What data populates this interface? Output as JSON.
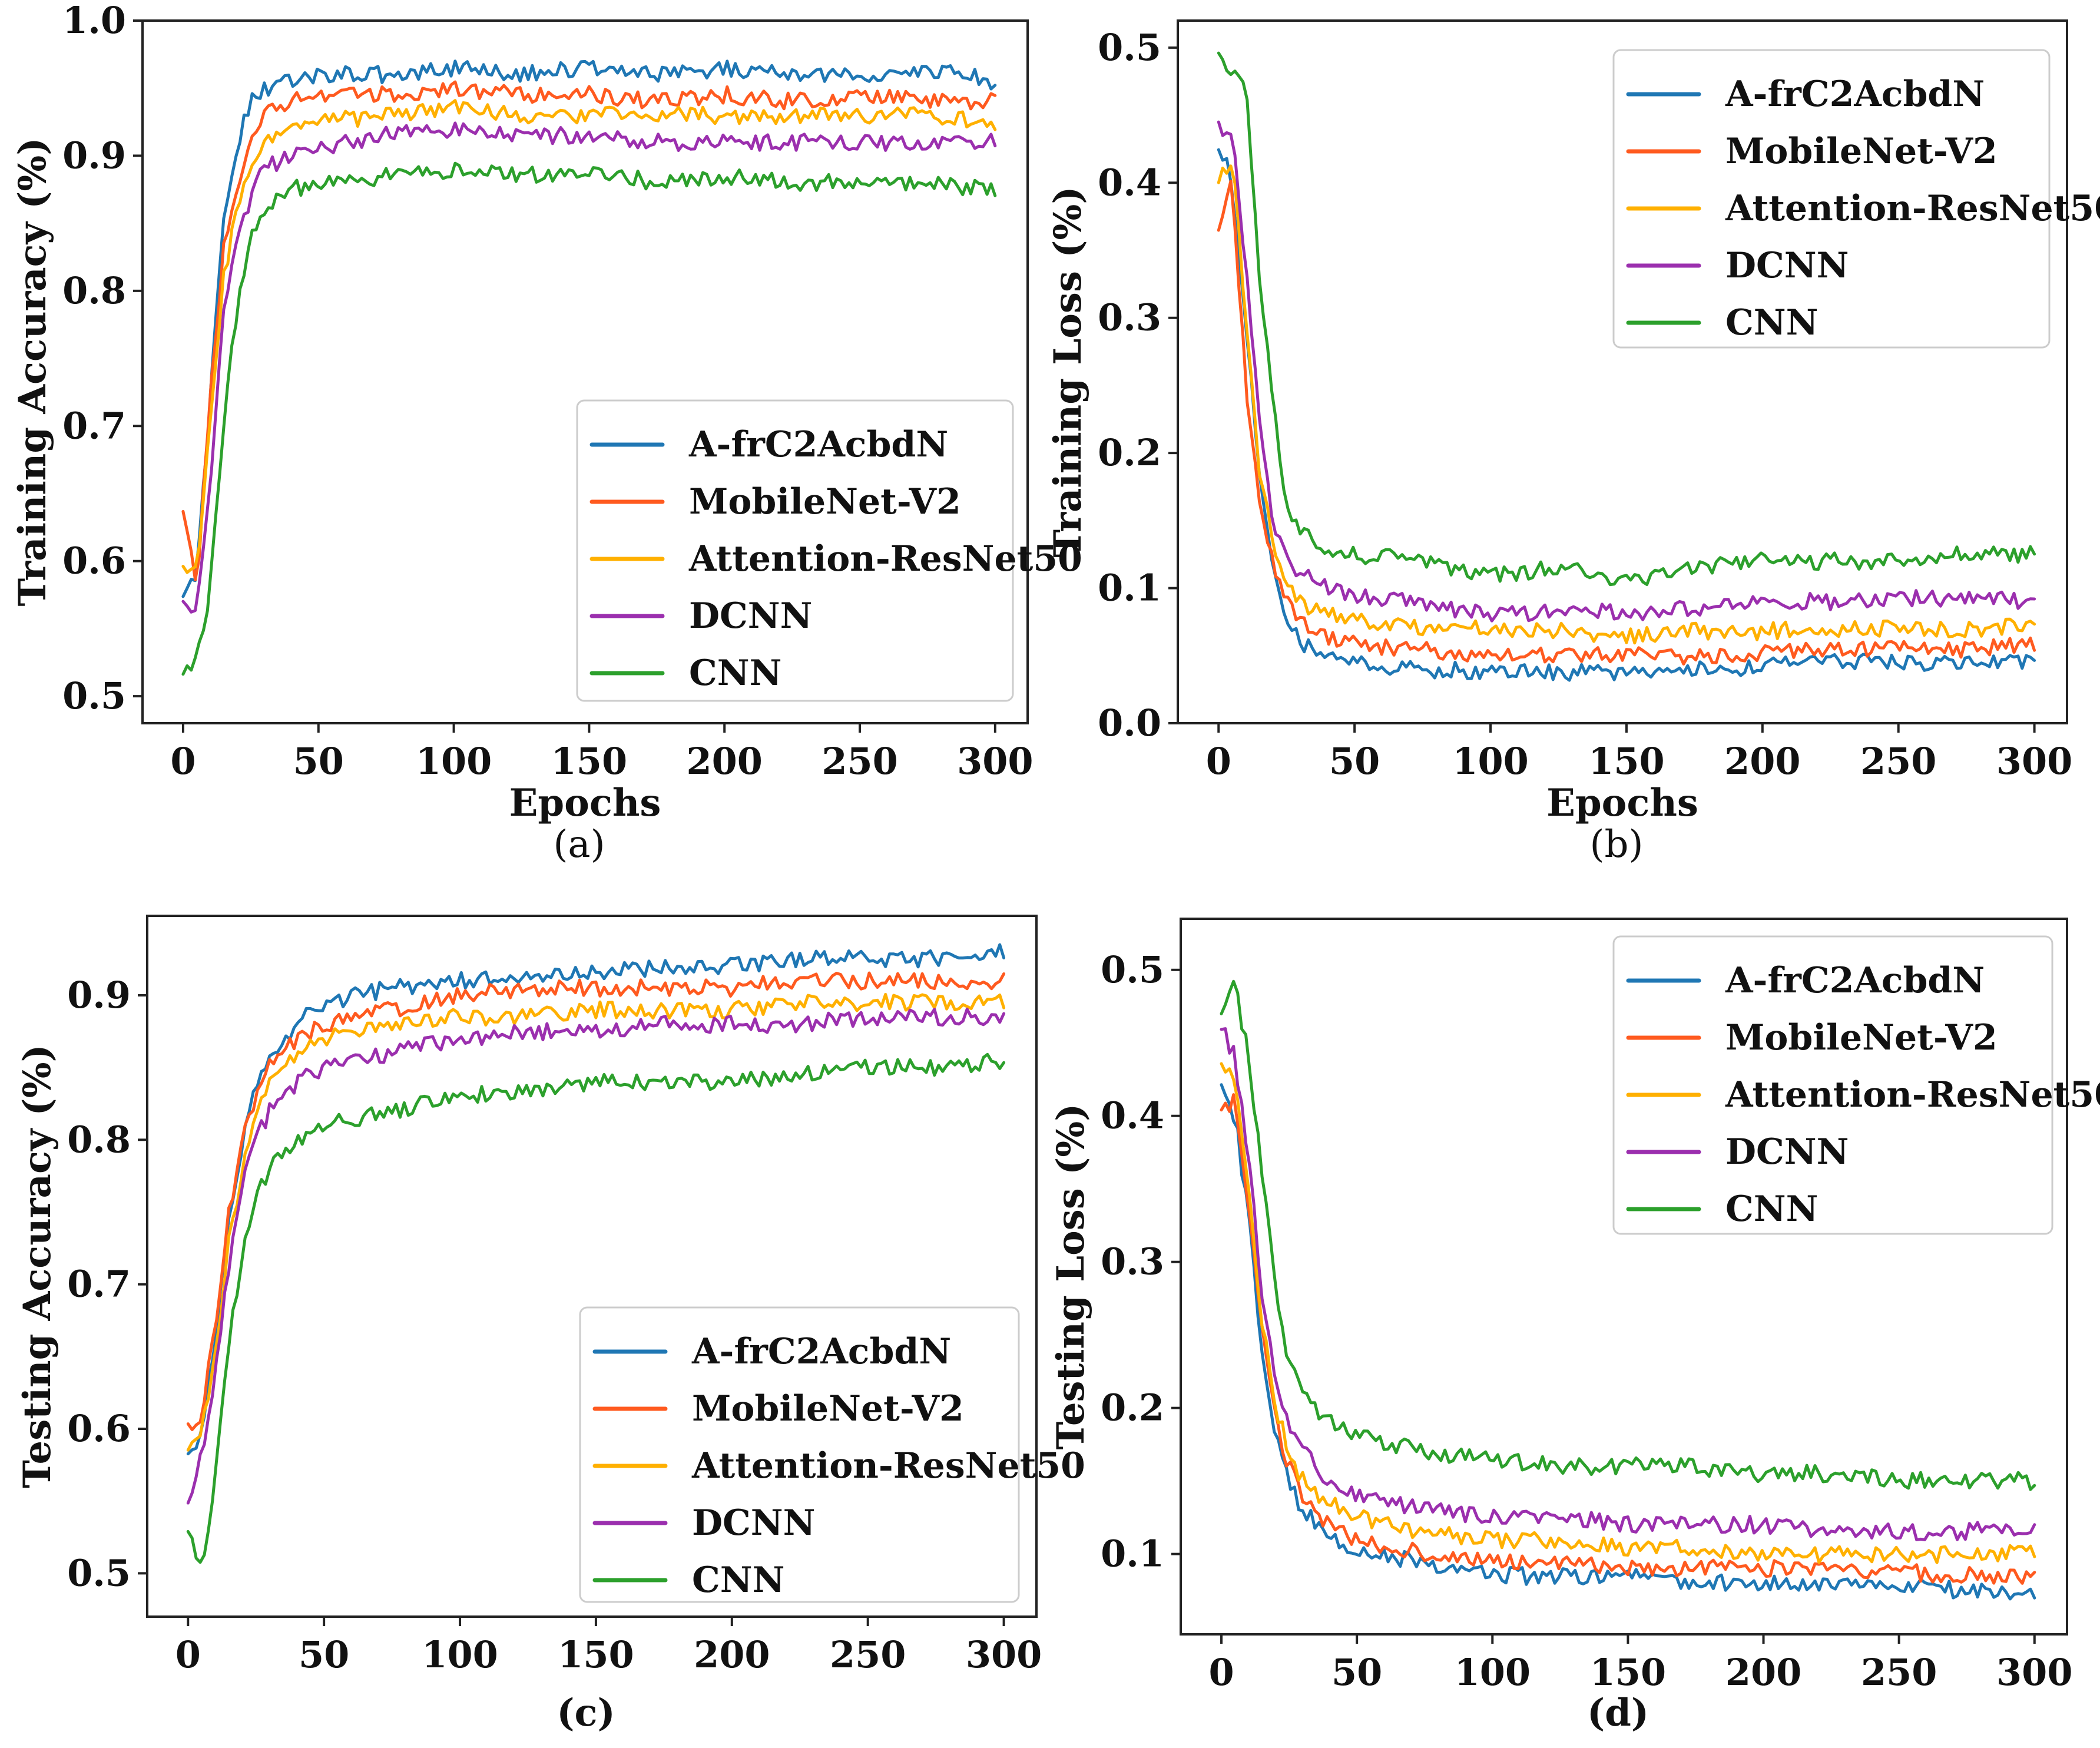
{
  "colors": {
    "A-frC2AcbdN": "#1f77b4",
    "MobileNet-V2": "#ff5a1f",
    "Attention-ResNet50": "#ffb000",
    "DCNN": "#9b2fae",
    "CNN": "#2ca02c"
  },
  "chart_data": [
    {
      "id": "a",
      "type": "line",
      "caption": "(a)",
      "caption_bold": false,
      "title": "",
      "xlabel": "Epochs",
      "ylabel": "Training Accuracy (%)",
      "xlim": [
        -15,
        312
      ],
      "ylim": [
        0.48,
        1.0
      ],
      "xticks": [
        0,
        50,
        100,
        150,
        200,
        250,
        300
      ],
      "xtick_labels": [
        "0",
        "50",
        "100",
        "150",
        "200",
        "250",
        "300"
      ],
      "yticks": [
        0.5,
        0.6,
        0.7,
        0.8,
        0.9,
        1.0
      ],
      "ytick_labels": [
        "0.5",
        "0.6",
        "0.7",
        "0.8",
        "0.9",
        "1.0"
      ],
      "legend_position": "lower-right",
      "grid": false,
      "x": [
        0,
        5,
        10,
        15,
        20,
        25,
        30,
        40,
        50,
        75,
        100,
        125,
        150,
        175,
        200,
        225,
        250,
        275,
        300
      ],
      "series": [
        {
          "name": "A-frC2AcbdN",
          "values": [
            0.58,
            0.59,
            0.72,
            0.85,
            0.91,
            0.94,
            0.95,
            0.955,
            0.96,
            0.96,
            0.965,
            0.96,
            0.965,
            0.96,
            0.965,
            0.96,
            0.96,
            0.965,
            0.955
          ]
        },
        {
          "name": "MobileNet-V2",
          "values": [
            0.64,
            0.58,
            0.72,
            0.83,
            0.88,
            0.91,
            0.93,
            0.94,
            0.945,
            0.945,
            0.95,
            0.945,
            0.945,
            0.94,
            0.945,
            0.94,
            0.945,
            0.94,
            0.94
          ]
        },
        {
          "name": "Attention-ResNet50",
          "values": [
            0.6,
            0.59,
            0.7,
            0.81,
            0.86,
            0.89,
            0.91,
            0.92,
            0.925,
            0.93,
            0.935,
            0.93,
            0.93,
            0.93,
            0.93,
            0.93,
            0.93,
            0.93,
            0.925
          ]
        },
        {
          "name": "DCNN",
          "values": [
            0.57,
            0.56,
            0.66,
            0.78,
            0.84,
            0.87,
            0.89,
            0.9,
            0.905,
            0.915,
            0.92,
            0.915,
            0.915,
            0.91,
            0.91,
            0.91,
            0.91,
            0.91,
            0.91
          ]
        },
        {
          "name": "CNN",
          "values": [
            0.52,
            0.525,
            0.58,
            0.7,
            0.79,
            0.84,
            0.86,
            0.875,
            0.88,
            0.885,
            0.89,
            0.885,
            0.89,
            0.88,
            0.885,
            0.88,
            0.88,
            0.88,
            0.875
          ]
        }
      ]
    },
    {
      "id": "b",
      "type": "line",
      "caption": "(b)",
      "caption_bold": false,
      "title": "",
      "xlabel": "Epochs",
      "ylabel": "Training Loss (%)",
      "xlim": [
        -15,
        312
      ],
      "ylim": [
        0.0,
        0.52
      ],
      "xticks": [
        0,
        50,
        100,
        150,
        200,
        250,
        300
      ],
      "xtick_labels": [
        "0",
        "50",
        "100",
        "150",
        "200",
        "250",
        "300"
      ],
      "yticks": [
        0.0,
        0.1,
        0.2,
        0.3,
        0.4,
        0.5
      ],
      "ytick_labels": [
        "0.0",
        "0.1",
        "0.2",
        "0.3",
        "0.4",
        "0.5"
      ],
      "legend_position": "upper-right",
      "grid": false,
      "x": [
        0,
        5,
        10,
        15,
        20,
        25,
        30,
        40,
        50,
        75,
        100,
        125,
        150,
        175,
        200,
        225,
        250,
        275,
        300
      ],
      "series": [
        {
          "name": "A-frC2AcbdN",
          "values": [
            0.43,
            0.4,
            0.3,
            0.18,
            0.12,
            0.08,
            0.06,
            0.05,
            0.045,
            0.04,
            0.038,
            0.038,
            0.037,
            0.04,
            0.042,
            0.045,
            0.045,
            0.045,
            0.045
          ]
        },
        {
          "name": "MobileNet-V2",
          "values": [
            0.36,
            0.4,
            0.25,
            0.16,
            0.12,
            0.09,
            0.075,
            0.065,
            0.058,
            0.055,
            0.05,
            0.05,
            0.05,
            0.05,
            0.052,
            0.055,
            0.055,
            0.055,
            0.06
          ]
        },
        {
          "name": "Attention-ResNet50",
          "values": [
            0.4,
            0.42,
            0.3,
            0.19,
            0.13,
            0.1,
            0.09,
            0.08,
            0.075,
            0.07,
            0.07,
            0.068,
            0.065,
            0.068,
            0.068,
            0.07,
            0.07,
            0.07,
            0.072
          ]
        },
        {
          "name": "DCNN",
          "values": [
            0.44,
            0.44,
            0.34,
            0.22,
            0.15,
            0.12,
            0.11,
            0.1,
            0.095,
            0.088,
            0.08,
            0.082,
            0.082,
            0.085,
            0.09,
            0.09,
            0.092,
            0.092,
            0.09
          ]
        },
        {
          "name": "CNN",
          "values": [
            0.49,
            0.48,
            0.47,
            0.33,
            0.24,
            0.16,
            0.14,
            0.13,
            0.125,
            0.12,
            0.11,
            0.115,
            0.105,
            0.115,
            0.12,
            0.12,
            0.12,
            0.125,
            0.125
          ]
        }
      ]
    },
    {
      "id": "c",
      "type": "line",
      "caption": "(c)",
      "caption_bold": true,
      "title": "",
      "xlabel": "",
      "ylabel": "Testing Accuracy (%)",
      "xlim": [
        -15,
        312
      ],
      "ylim": [
        0.47,
        0.955
      ],
      "xticks": [
        0,
        50,
        100,
        150,
        200,
        250,
        300
      ],
      "xtick_labels": [
        "0",
        "50",
        "100",
        "150",
        "200",
        "250",
        "300"
      ],
      "yticks": [
        0.5,
        0.6,
        0.7,
        0.8,
        0.9
      ],
      "ytick_labels": [
        "0.5",
        "0.6",
        "0.7",
        "0.8",
        "0.9"
      ],
      "legend_position": "lower-right",
      "grid": false,
      "x": [
        0,
        5,
        10,
        15,
        20,
        25,
        30,
        40,
        50,
        75,
        100,
        125,
        150,
        175,
        200,
        225,
        250,
        275,
        300
      ],
      "series": [
        {
          "name": "A-frC2AcbdN",
          "values": [
            0.58,
            0.6,
            0.66,
            0.74,
            0.8,
            0.84,
            0.86,
            0.88,
            0.895,
            0.905,
            0.91,
            0.915,
            0.915,
            0.92,
            0.92,
            0.925,
            0.925,
            0.925,
            0.93
          ]
        },
        {
          "name": "MobileNet-V2",
          "values": [
            0.6,
            0.61,
            0.67,
            0.75,
            0.8,
            0.83,
            0.85,
            0.87,
            0.88,
            0.89,
            0.9,
            0.905,
            0.905,
            0.905,
            0.905,
            0.91,
            0.91,
            0.91,
            0.91
          ]
        },
        {
          "name": "Attention-ResNet50",
          "values": [
            0.58,
            0.6,
            0.65,
            0.73,
            0.78,
            0.82,
            0.84,
            0.86,
            0.87,
            0.88,
            0.885,
            0.885,
            0.89,
            0.89,
            0.89,
            0.895,
            0.895,
            0.895,
            0.895
          ]
        },
        {
          "name": "DCNN",
          "values": [
            0.55,
            0.58,
            0.64,
            0.71,
            0.77,
            0.8,
            0.82,
            0.84,
            0.85,
            0.86,
            0.87,
            0.875,
            0.875,
            0.88,
            0.88,
            0.88,
            0.885,
            0.885,
            0.885
          ]
        },
        {
          "name": "CNN",
          "values": [
            0.53,
            0.5,
            0.57,
            0.66,
            0.72,
            0.76,
            0.78,
            0.8,
            0.81,
            0.82,
            0.83,
            0.835,
            0.84,
            0.84,
            0.84,
            0.845,
            0.85,
            0.85,
            0.855
          ]
        }
      ]
    },
    {
      "id": "d",
      "type": "line",
      "caption": "(d)",
      "caption_bold": true,
      "title": "",
      "xlabel": "",
      "ylabel": "Testing Loss (%)",
      "xlim": [
        -15,
        312
      ],
      "ylim": [
        0.045,
        0.535
      ],
      "xticks": [
        0,
        50,
        100,
        150,
        200,
        250,
        300
      ],
      "xtick_labels": [
        "0",
        "50",
        "100",
        "150",
        "200",
        "250",
        "300"
      ],
      "yticks": [
        0.1,
        0.2,
        0.3,
        0.4,
        0.5
      ],
      "ytick_labels": [
        "0.1",
        "0.2",
        "0.3",
        "0.4",
        "0.5"
      ],
      "legend_position": "upper-right",
      "grid": false,
      "x": [
        0,
        5,
        10,
        15,
        20,
        25,
        30,
        40,
        50,
        75,
        100,
        125,
        150,
        175,
        200,
        225,
        250,
        275,
        300
      ],
      "series": [
        {
          "name": "A-frC2AcbdN",
          "values": [
            0.42,
            0.4,
            0.33,
            0.24,
            0.18,
            0.15,
            0.13,
            0.11,
            0.1,
            0.095,
            0.085,
            0.085,
            0.085,
            0.08,
            0.08,
            0.078,
            0.078,
            0.075,
            0.075
          ]
        },
        {
          "name": "MobileNet-V2",
          "values": [
            0.4,
            0.41,
            0.34,
            0.25,
            0.19,
            0.16,
            0.14,
            0.12,
            0.11,
            0.1,
            0.095,
            0.095,
            0.09,
            0.09,
            0.09,
            0.088,
            0.088,
            0.085,
            0.085
          ]
        },
        {
          "name": "Attention-ResNet50",
          "values": [
            0.44,
            0.42,
            0.35,
            0.26,
            0.2,
            0.17,
            0.15,
            0.135,
            0.125,
            0.115,
            0.11,
            0.11,
            0.105,
            0.105,
            0.1,
            0.1,
            0.1,
            0.1,
            0.1
          ]
        },
        {
          "name": "DCNN",
          "values": [
            0.46,
            0.44,
            0.37,
            0.28,
            0.22,
            0.19,
            0.17,
            0.15,
            0.14,
            0.13,
            0.125,
            0.125,
            0.12,
            0.12,
            0.12,
            0.115,
            0.115,
            0.115,
            0.12
          ]
        },
        {
          "name": "CNN",
          "values": [
            0.47,
            0.49,
            0.44,
            0.36,
            0.28,
            0.23,
            0.21,
            0.19,
            0.18,
            0.17,
            0.165,
            0.16,
            0.16,
            0.16,
            0.155,
            0.155,
            0.15,
            0.15,
            0.15
          ]
        }
      ]
    }
  ]
}
